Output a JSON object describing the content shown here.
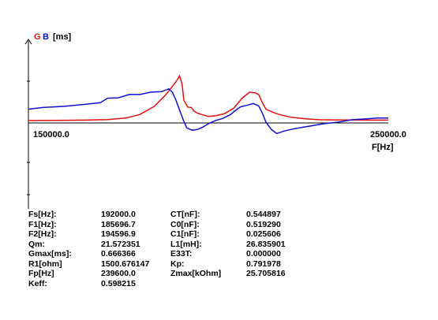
{
  "chart_data": {
    "type": "line",
    "title": "",
    "legend": [
      {
        "label": "G",
        "color": "#e01010"
      },
      {
        "label": "B",
        "color": "#1010d0"
      }
    ],
    "y_unit_label": "[ms]",
    "xlabel": "F[Hz]",
    "xlim": [
      150000.0,
      250000.0
    ],
    "x_tick_labels": {
      "min": "150000.0",
      "max": "250000.0"
    },
    "series": [
      {
        "name": "G",
        "color": "#e01010",
        "points": [
          [
            150000,
            0.3
          ],
          [
            158000,
            0.32
          ],
          [
            166000,
            0.35
          ],
          [
            172000,
            0.42
          ],
          [
            177000,
            0.6
          ],
          [
            181000,
            1.05
          ],
          [
            185000,
            2.05
          ],
          [
            188000,
            3.4
          ],
          [
            190000,
            4.5
          ],
          [
            191500,
            5.4
          ],
          [
            192000,
            5.8
          ],
          [
            192700,
            4.8
          ],
          [
            193200,
            2.8
          ],
          [
            194300,
            1.95
          ],
          [
            195300,
            1.9
          ],
          [
            196000,
            1.45
          ],
          [
            197000,
            1.2
          ],
          [
            198500,
            1.0
          ],
          [
            200000,
            0.8
          ],
          [
            202000,
            0.88
          ],
          [
            204500,
            1.15
          ],
          [
            207000,
            1.8
          ],
          [
            209500,
            3.1
          ],
          [
            211500,
            3.8
          ],
          [
            213000,
            3.7
          ],
          [
            214000,
            3.5
          ],
          [
            215000,
            2.5
          ],
          [
            216000,
            1.7
          ],
          [
            218000,
            1.3
          ],
          [
            220000,
            1.0
          ],
          [
            223000,
            0.7
          ],
          [
            227000,
            0.5
          ],
          [
            231000,
            0.4
          ],
          [
            235000,
            0.38
          ],
          [
            240000,
            0.36
          ],
          [
            245000,
            0.35
          ],
          [
            250000,
            0.35
          ]
        ]
      },
      {
        "name": "B",
        "color": "#1010d0",
        "points": [
          [
            150000,
            1.7
          ],
          [
            154000,
            1.9
          ],
          [
            160000,
            2.05
          ],
          [
            166000,
            2.3
          ],
          [
            170000,
            2.5
          ],
          [
            172000,
            3.05
          ],
          [
            175000,
            3.1
          ],
          [
            178000,
            3.5
          ],
          [
            181000,
            3.5
          ],
          [
            184000,
            3.8
          ],
          [
            187000,
            3.85
          ],
          [
            189000,
            4.2
          ],
          [
            190000,
            3.8
          ],
          [
            191000,
            2.8
          ],
          [
            192000,
            1.6
          ],
          [
            193000,
            0.4
          ],
          [
            194000,
            -0.6
          ],
          [
            195500,
            -0.9
          ],
          [
            197000,
            -0.8
          ],
          [
            198500,
            -0.5
          ],
          [
            200000,
            -0.1
          ],
          [
            202000,
            0.3
          ],
          [
            204000,
            0.55
          ],
          [
            206000,
            1.0
          ],
          [
            208000,
            1.7
          ],
          [
            209000,
            2.0
          ],
          [
            211000,
            2.2
          ],
          [
            212500,
            2.4
          ],
          [
            214000,
            2.1
          ],
          [
            215000,
            1.2
          ],
          [
            216000,
            0.1
          ],
          [
            217500,
            -0.8
          ],
          [
            219000,
            -1.3
          ],
          [
            221000,
            -1.0
          ],
          [
            224000,
            -0.7
          ],
          [
            228000,
            -0.4
          ],
          [
            232000,
            -0.1
          ],
          [
            236000,
            0.1
          ],
          [
            240000,
            0.4
          ],
          [
            244000,
            0.5
          ],
          [
            247000,
            0.6
          ],
          [
            250000,
            0.6
          ]
        ]
      }
    ],
    "ylim": [
      -11,
      10
    ],
    "grid": false
  },
  "parameters": [
    {
      "label": "Fs[Hz]:",
      "value": "192000.0",
      "label2": "CT[nF]:",
      "value2": "0.544897"
    },
    {
      "label": "F1[Hz]:",
      "value": "185696.7",
      "label2": "C0[nF]:",
      "value2": "0.519290"
    },
    {
      "label": "F2[Hz]:",
      "value": "194596.9",
      "label2": "C1[nF]:",
      "value2": "0.025606"
    },
    {
      "label": "Qm:",
      "value": "21.572351",
      "label2": "L1[mH]:",
      "value2": "26.835901"
    },
    {
      "label": "Gmax[ms]:",
      "value": "0.666366",
      "label2": "E33T:",
      "value2": "0.000000"
    },
    {
      "label": "R1[ohm]",
      "value": "1500.676147",
      "label2": "Kp:",
      "value2": "0.791978"
    },
    {
      "label": "Fp[Hz]",
      "value": "239600.0",
      "label2": "Zmax[kOhm]",
      "value2": "25.705816"
    },
    {
      "label": "Keff:",
      "value": "0.598215",
      "label2": "",
      "value2": ""
    }
  ]
}
